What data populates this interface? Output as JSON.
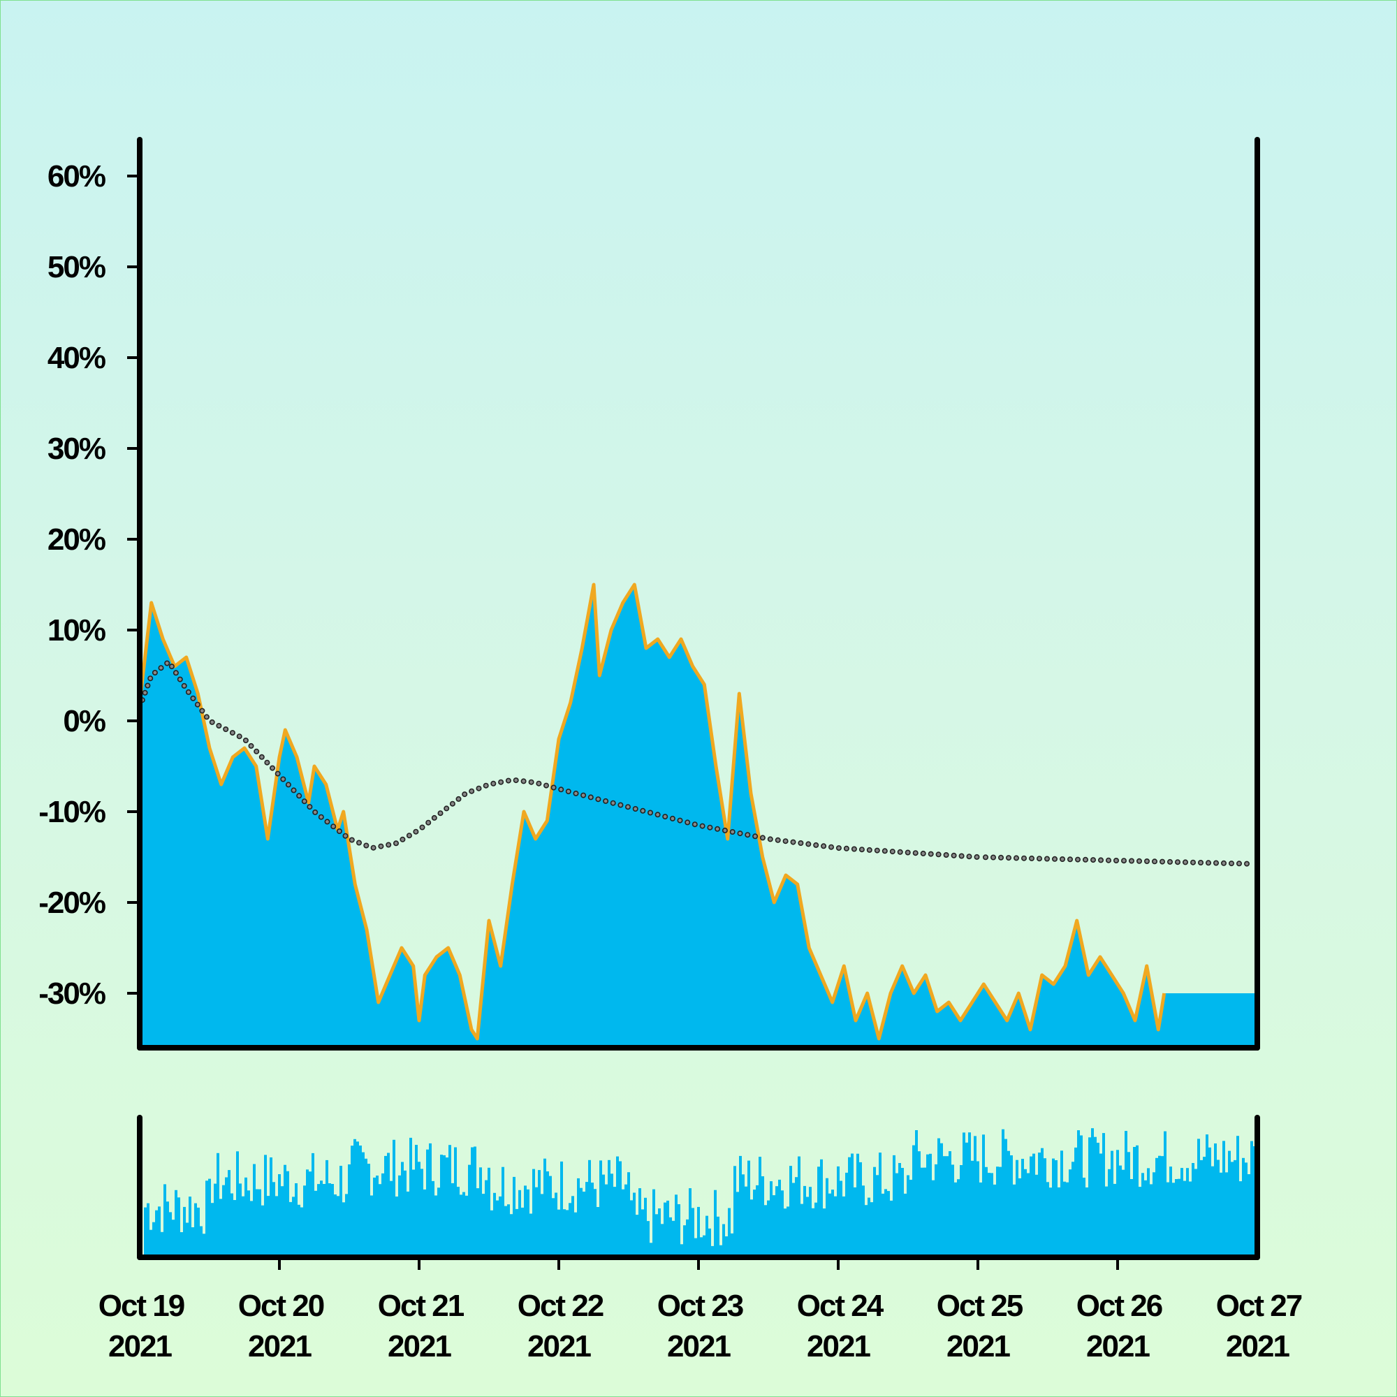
{
  "chart_data": {
    "type": "area",
    "title": "",
    "xlabel": "",
    "ylabel": "",
    "x_start": "2021-10-19",
    "x_end": "2021-10-27",
    "x_ticks": [
      {
        "line1": "Oct 19",
        "line2": "2021"
      },
      {
        "line1": "Oct 20",
        "line2": "2021"
      },
      {
        "line1": "Oct 21",
        "line2": "2021"
      },
      {
        "line1": "Oct 22",
        "line2": "2021"
      },
      {
        "line1": "Oct 23",
        "line2": "2021"
      },
      {
        "line1": "Oct 24",
        "line2": "2021"
      },
      {
        "line1": "Oct 25",
        "line2": "2021"
      },
      {
        "line1": "Oct 26",
        "line2": "2021"
      },
      {
        "line1": "Oct 27",
        "line2": "2021"
      }
    ],
    "y_ticks": [
      "60%",
      "50%",
      "40%",
      "30%",
      "20%",
      "10%",
      "0%",
      "-10%",
      "-20%",
      "-30%"
    ],
    "y_tick_values": [
      60,
      50,
      40,
      30,
      20,
      10,
      0,
      -10,
      -20,
      -30
    ],
    "ylim": [
      -36,
      64
    ],
    "grid": false,
    "series": [
      {
        "role": "price-area",
        "color": "#00b8ee",
        "edge_color": "#f0a820",
        "points": [
          [
            "2021-10-19 00:00",
            2
          ],
          [
            "2021-10-19 02:00",
            13
          ],
          [
            "2021-10-19 04:00",
            9
          ],
          [
            "2021-10-19 06:00",
            6
          ],
          [
            "2021-10-19 08:00",
            7
          ],
          [
            "2021-10-19 10:00",
            3
          ],
          [
            "2021-10-19 12:00",
            -3
          ],
          [
            "2021-10-19 14:00",
            -7
          ],
          [
            "2021-10-19 16:00",
            -4
          ],
          [
            "2021-10-19 18:00",
            -3
          ],
          [
            "2021-10-19 20:00",
            -5
          ],
          [
            "2021-10-19 22:00",
            -13
          ],
          [
            "2021-10-20 00:00",
            -4
          ],
          [
            "2021-10-20 01:00",
            -1
          ],
          [
            "2021-10-20 03:00",
            -4
          ],
          [
            "2021-10-20 05:00",
            -9
          ],
          [
            "2021-10-20 06:00",
            -5
          ],
          [
            "2021-10-20 08:00",
            -7
          ],
          [
            "2021-10-20 10:00",
            -12
          ],
          [
            "2021-10-20 11:00",
            -10
          ],
          [
            "2021-10-20 13:00",
            -18
          ],
          [
            "2021-10-20 15:00",
            -23
          ],
          [
            "2021-10-20 17:00",
            -31
          ],
          [
            "2021-10-20 19:00",
            -28
          ],
          [
            "2021-10-20 21:00",
            -25
          ],
          [
            "2021-10-20 23:00",
            -27
          ],
          [
            "2021-10-21 00:00",
            -33
          ],
          [
            "2021-10-21 01:00",
            -28
          ],
          [
            "2021-10-21 03:00",
            -26
          ],
          [
            "2021-10-21 05:00",
            -25
          ],
          [
            "2021-10-21 07:00",
            -28
          ],
          [
            "2021-10-21 09:00",
            -34
          ],
          [
            "2021-10-21 10:00",
            -35
          ],
          [
            "2021-10-21 12:00",
            -22
          ],
          [
            "2021-10-21 14:00",
            -27
          ],
          [
            "2021-10-21 16:00",
            -18
          ],
          [
            "2021-10-21 18:00",
            -10
          ],
          [
            "2021-10-21 20:00",
            -13
          ],
          [
            "2021-10-21 22:00",
            -11
          ],
          [
            "2021-10-22 00:00",
            -2
          ],
          [
            "2021-10-22 02:00",
            2
          ],
          [
            "2021-10-22 04:00",
            8
          ],
          [
            "2021-10-22 06:00",
            15
          ],
          [
            "2021-10-22 07:00",
            5
          ],
          [
            "2021-10-22 09:00",
            10
          ],
          [
            "2021-10-22 11:00",
            13
          ],
          [
            "2021-10-22 13:00",
            15
          ],
          [
            "2021-10-22 15:00",
            8
          ],
          [
            "2021-10-22 17:00",
            9
          ],
          [
            "2021-10-22 19:00",
            7
          ],
          [
            "2021-10-22 21:00",
            9
          ],
          [
            "2021-10-22 23:00",
            6
          ],
          [
            "2021-10-23 01:00",
            4
          ],
          [
            "2021-10-23 03:00",
            -5
          ],
          [
            "2021-10-23 05:00",
            -13
          ],
          [
            "2021-10-23 07:00",
            3
          ],
          [
            "2021-10-23 09:00",
            -8
          ],
          [
            "2021-10-23 11:00",
            -15
          ],
          [
            "2021-10-23 13:00",
            -20
          ],
          [
            "2021-10-23 15:00",
            -17
          ],
          [
            "2021-10-23 17:00",
            -18
          ],
          [
            "2021-10-23 19:00",
            -25
          ],
          [
            "2021-10-23 21:00",
            -28
          ],
          [
            "2021-10-23 23:00",
            -31
          ],
          [
            "2021-10-24 01:00",
            -27
          ],
          [
            "2021-10-24 03:00",
            -33
          ],
          [
            "2021-10-24 05:00",
            -30
          ],
          [
            "2021-10-24 07:00",
            -35
          ],
          [
            "2021-10-24 09:00",
            -30
          ],
          [
            "2021-10-24 11:00",
            -27
          ],
          [
            "2021-10-24 13:00",
            -30
          ],
          [
            "2021-10-24 15:00",
            -28
          ],
          [
            "2021-10-24 17:00",
            -32
          ],
          [
            "2021-10-24 19:00",
            -31
          ],
          [
            "2021-10-24 21:00",
            -33
          ],
          [
            "2021-10-24 23:00",
            -31
          ],
          [
            "2021-10-25 01:00",
            -29
          ],
          [
            "2021-10-25 03:00",
            -31
          ],
          [
            "2021-10-25 05:00",
            -33
          ],
          [
            "2021-10-25 07:00",
            -30
          ],
          [
            "2021-10-25 09:00",
            -34
          ],
          [
            "2021-10-25 11:00",
            -28
          ],
          [
            "2021-10-25 13:00",
            -29
          ],
          [
            "2021-10-25 15:00",
            -27
          ],
          [
            "2021-10-25 17:00",
            -22
          ],
          [
            "2021-10-25 19:00",
            -28
          ],
          [
            "2021-10-25 21:00",
            -26
          ],
          [
            "2021-10-25 23:00",
            -28
          ],
          [
            "2021-10-26 01:00",
            -30
          ],
          [
            "2021-10-26 03:00",
            -33
          ],
          [
            "2021-10-26 05:00",
            -27
          ],
          [
            "2021-10-26 07:00",
            -34
          ],
          [
            "2021-10-26 08:00",
            -30
          ]
        ]
      },
      {
        "role": "trend-dotted",
        "color": "#222222",
        "style": "dotted",
        "points": [
          [
            "2021-10-19 00:00",
            1.5
          ],
          [
            "2021-10-19 02:00",
            5
          ],
          [
            "2021-10-19 05:00",
            6.5
          ],
          [
            "2021-10-19 08:00",
            3.5
          ],
          [
            "2021-10-19 12:00",
            0
          ],
          [
            "2021-10-19 18:00",
            -2
          ],
          [
            "2021-10-20 00:00",
            -6
          ],
          [
            "2021-10-20 06:00",
            -10
          ],
          [
            "2021-10-20 12:00",
            -13
          ],
          [
            "2021-10-20 16:00",
            -14
          ],
          [
            "2021-10-20 20:00",
            -13.5
          ],
          [
            "2021-10-21 00:00",
            -12
          ],
          [
            "2021-10-21 04:00",
            -10
          ],
          [
            "2021-10-21 08:00",
            -8
          ],
          [
            "2021-10-21 12:00",
            -7
          ],
          [
            "2021-10-21 16:00",
            -6.5
          ],
          [
            "2021-10-21 20:00",
            -6.8
          ],
          [
            "2021-10-22 00:00",
            -7.5
          ],
          [
            "2021-10-22 06:00",
            -8.5
          ],
          [
            "2021-10-22 12:00",
            -9.5
          ],
          [
            "2021-10-23 00:00",
            -11.5
          ],
          [
            "2021-10-23 12:00",
            -13
          ],
          [
            "2021-10-24 00:00",
            -14
          ],
          [
            "2021-10-25 00:00",
            -15
          ]
        ]
      }
    ],
    "volume": {
      "color": "#00b8ee",
      "segments": [
        {
          "from": "2021-10-19 00:00",
          "to": "2021-10-19 12:00",
          "level": 0.38
        },
        {
          "from": "2021-10-19 12:00",
          "to": "2021-10-20 12:00",
          "level": 0.58
        },
        {
          "from": "2021-10-20 12:00",
          "to": "2021-10-21 12:00",
          "level": 0.68
        },
        {
          "from": "2021-10-21 12:00",
          "to": "2021-10-22 12:00",
          "level": 0.55
        },
        {
          "from": "2021-10-22 12:00",
          "to": "2021-10-23 06:00",
          "level": 0.3
        },
        {
          "from": "2021-10-23 06:00",
          "to": "2021-10-24 12:00",
          "level": 0.58
        },
        {
          "from": "2021-10-24 12:00",
          "to": "2021-10-27 00:00",
          "level": 0.75
        }
      ]
    }
  }
}
